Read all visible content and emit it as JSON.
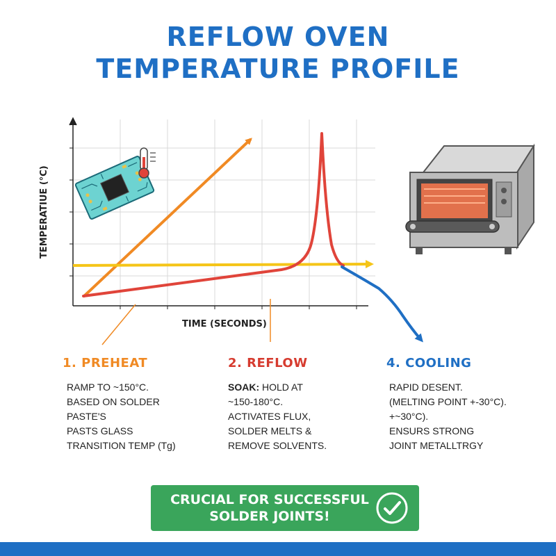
{
  "title": {
    "line1": "REFLOW OVEN",
    "line2": "TEMPERATURE PROFILE"
  },
  "chart": {
    "ylabel": "TEMPERATIUE (°C)",
    "xlabel": "TIME (SECONDS)"
  },
  "stages": {
    "preheat": {
      "heading": "1. PREHEAT",
      "lines": [
        "RAMP TO  ~150°C.",
        "BASED ON SOLDER",
        "PASTE'S",
        "PASTS GLASS",
        "TRANSITION TEMP (Tg)"
      ]
    },
    "reflow": {
      "heading": "2. REFLOW",
      "soak_label": "SOAK:",
      "soak_rest": " HOLD AT",
      "lines": [
        "~150-180°C.",
        "ACTIVATES FLUX,",
        "SOLDER MELTS &",
        "REMOVE SOLVENTS."
      ]
    },
    "cooling": {
      "heading": "4. COOLING",
      "lines": [
        "RAPID DESENT.",
        "(MELTING POINT +-30°C).",
        "+~30°C).",
        "ENSURS STRONG",
        "JOINT METALLTRGY"
      ]
    }
  },
  "banner": {
    "line1": "CRUCIAL FOR SUCCESSFUL",
    "line2": "SOLDER JOINTS!"
  },
  "colors": {
    "title": "#1f6fc4",
    "preheat": "#f08a24",
    "reflow": "#d63b2f",
    "cooling": "#1f6fc4",
    "threshold": "#f5c518",
    "banner": "#3aa55b"
  },
  "icons": [
    "circuit-board-icon",
    "thermometer-icon",
    "reflow-oven-icon",
    "checkmark-icon"
  ]
}
